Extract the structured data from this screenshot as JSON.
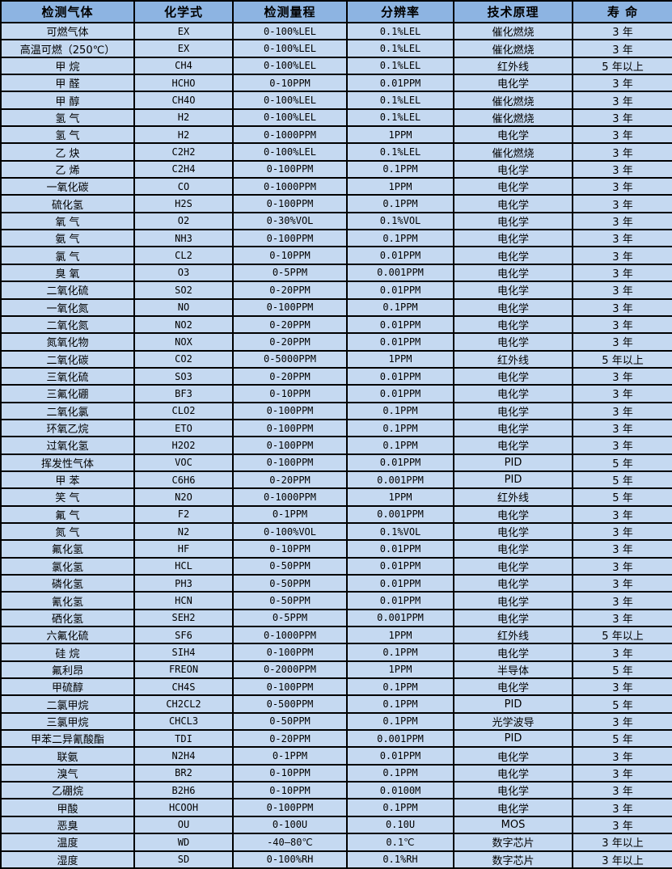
{
  "table": {
    "headers": [
      "检测气体",
      "化学式",
      "检测量程",
      "分辨率",
      "技术原理",
      "寿 命"
    ],
    "rows": [
      [
        "可燃气体",
        "EX",
        "0-100%LEL",
        "0.1%LEL",
        "催化燃烧",
        "3 年"
      ],
      [
        "高温可燃（250℃）",
        "EX",
        "0-100%LEL",
        "0.1%LEL",
        "催化燃烧",
        "3 年"
      ],
      [
        "甲 烷",
        "CH4",
        "0-100%LEL",
        "0.1%LEL",
        "红外线",
        "5 年以上"
      ],
      [
        "甲 醛",
        "HCHO",
        "0-10PPM",
        "0.01PPM",
        "电化学",
        "3 年"
      ],
      [
        "甲 醇",
        "CH4O",
        "0-100%LEL",
        "0.1%LEL",
        "催化燃烧",
        "3 年"
      ],
      [
        "氢 气",
        "H2",
        "0-100%LEL",
        "0.1%LEL",
        "催化燃烧",
        "3 年"
      ],
      [
        "氢 气",
        "H2",
        "0-1000PPM",
        "1PPM",
        "电化学",
        "3 年"
      ],
      [
        "乙 炔",
        "C2H2",
        "0-100%LEL",
        "0.1%LEL",
        "催化燃烧",
        "3 年"
      ],
      [
        "乙 烯",
        "C2H4",
        "0-100PPM",
        "0.1PPM",
        "电化学",
        "3 年"
      ],
      [
        "一氧化碳",
        "CO",
        "0-1000PPM",
        "1PPM",
        "电化学",
        "3 年"
      ],
      [
        "硫化氢",
        "H2S",
        "0-100PPM",
        "0.1PPM",
        "电化学",
        "3 年"
      ],
      [
        "氧 气",
        "O2",
        "0-30%VOL",
        "0.1%VOL",
        "电化学",
        "3 年"
      ],
      [
        "氨 气",
        "NH3",
        "0-100PPM",
        "0.1PPM",
        "电化学",
        "3 年"
      ],
      [
        "氯 气",
        "CL2",
        "0-10PPM",
        "0.01PPM",
        "电化学",
        "3 年"
      ],
      [
        "臭 氧",
        "O3",
        "0-5PPM",
        "0.001PPM",
        "电化学",
        "3 年"
      ],
      [
        "二氧化硫",
        "SO2",
        "0-20PPM",
        "0.01PPM",
        "电化学",
        "3 年"
      ],
      [
        "一氧化氮",
        "NO",
        "0-100PPM",
        "0.1PPM",
        "电化学",
        "3 年"
      ],
      [
        "二氧化氮",
        "NO2",
        "0-20PPM",
        "0.01PPM",
        "电化学",
        "3 年"
      ],
      [
        "氮氧化物",
        "NOX",
        "0-20PPM",
        "0.01PPM",
        "电化学",
        "3 年"
      ],
      [
        "二氧化碳",
        "CO2",
        "0-5000PPM",
        "1PPM",
        "红外线",
        "5 年以上"
      ],
      [
        "三氧化硫",
        "SO3",
        "0-20PPM",
        "0.01PPM",
        "电化学",
        "3 年"
      ],
      [
        "三氟化硼",
        "BF3",
        "0-10PPM",
        "0.01PPM",
        "电化学",
        "3 年"
      ],
      [
        "二氧化氯",
        "CLO2",
        "0-100PPM",
        "0.1PPM",
        "电化学",
        "3 年"
      ],
      [
        "环氧乙烷",
        "ETO",
        "0-100PPM",
        "0.1PPM",
        "电化学",
        "3 年"
      ],
      [
        "过氧化氢",
        "H2O2",
        "0-100PPM",
        "0.1PPM",
        "电化学",
        "3 年"
      ],
      [
        "挥发性气体",
        "VOC",
        "0-100PPM",
        "0.01PPM",
        "PID",
        "5 年"
      ],
      [
        "甲 苯",
        "C6H6",
        "0-20PPM",
        "0.001PPM",
        "PID",
        "5 年"
      ],
      [
        "笑 气",
        "N2O",
        "0-1000PPM",
        "1PPM",
        "红外线",
        "5 年"
      ],
      [
        "氟 气",
        "F2",
        "0-1PPM",
        "0.001PPM",
        "电化学",
        "3 年"
      ],
      [
        "氮 气",
        "N2",
        "0-100%VOL",
        "0.1%VOL",
        "电化学",
        "3 年"
      ],
      [
        "氟化氢",
        "HF",
        "0-10PPM",
        "0.01PPM",
        "电化学",
        "3 年"
      ],
      [
        "氯化氢",
        "HCL",
        "0-50PPM",
        "0.01PPM",
        "电化学",
        "3 年"
      ],
      [
        "磷化氢",
        "PH3",
        "0-50PPM",
        "0.01PPM",
        "电化学",
        "3 年"
      ],
      [
        "氰化氢",
        "HCN",
        "0-50PPM",
        "0.01PPM",
        "电化学",
        "3 年"
      ],
      [
        "硒化氢",
        "SEH2",
        "0-5PPM",
        "0.001PPM",
        "电化学",
        "3 年"
      ],
      [
        "六氟化硫",
        "SF6",
        "0-1000PPM",
        "1PPM",
        "红外线",
        "5 年以上"
      ],
      [
        "硅 烷",
        "SIH4",
        "0-100PPM",
        "0.1PPM",
        "电化学",
        "3 年"
      ],
      [
        "氟利昂",
        "FREON",
        "0-2000PPM",
        "1PPM",
        "半导体",
        "5 年"
      ],
      [
        "甲硫醇",
        "CH4S",
        "0-100PPM",
        "0.1PPM",
        "电化学",
        "3 年"
      ],
      [
        "二氯甲烷",
        "CH2CL2",
        "0-500PPM",
        "0.1PPM",
        "PID",
        "5 年"
      ],
      [
        "三氯甲烷",
        "CHCL3",
        "0-50PPM",
        "0.1PPM",
        "光学波导",
        "3 年"
      ],
      [
        "甲苯二异氰酸酯",
        "TDI",
        "0-20PPM",
        "0.001PPM",
        "PID",
        "5 年"
      ],
      [
        "联氨",
        "N2H4",
        "0-1PPM",
        "0.01PPM",
        "电化学",
        "3 年"
      ],
      [
        "溴气",
        "BR2",
        "0-10PPM",
        "0.1PPM",
        "电化学",
        "3 年"
      ],
      [
        "乙硼烷",
        "B2H6",
        "0-10PPM",
        "0.0100M",
        "电化学",
        "3 年"
      ],
      [
        "甲酸",
        "HCOOH",
        "0-100PPM",
        "0.1PPM",
        "电化学",
        "3 年"
      ],
      [
        "恶臭",
        "OU",
        "0-100U",
        "0.10U",
        "MOS",
        "3 年"
      ],
      [
        "温度",
        "WD",
        "-40—80℃",
        "0.1℃",
        "数字芯片",
        "3 年以上"
      ],
      [
        "湿度",
        "SD",
        "0-100%RH",
        "0.1%RH",
        "数字芯片",
        "3 年以上"
      ]
    ],
    "colors": {
      "header_bg": "#8db4e2",
      "row_bg": "#c5d9f1",
      "border": "#000000",
      "text": "#000000"
    }
  }
}
